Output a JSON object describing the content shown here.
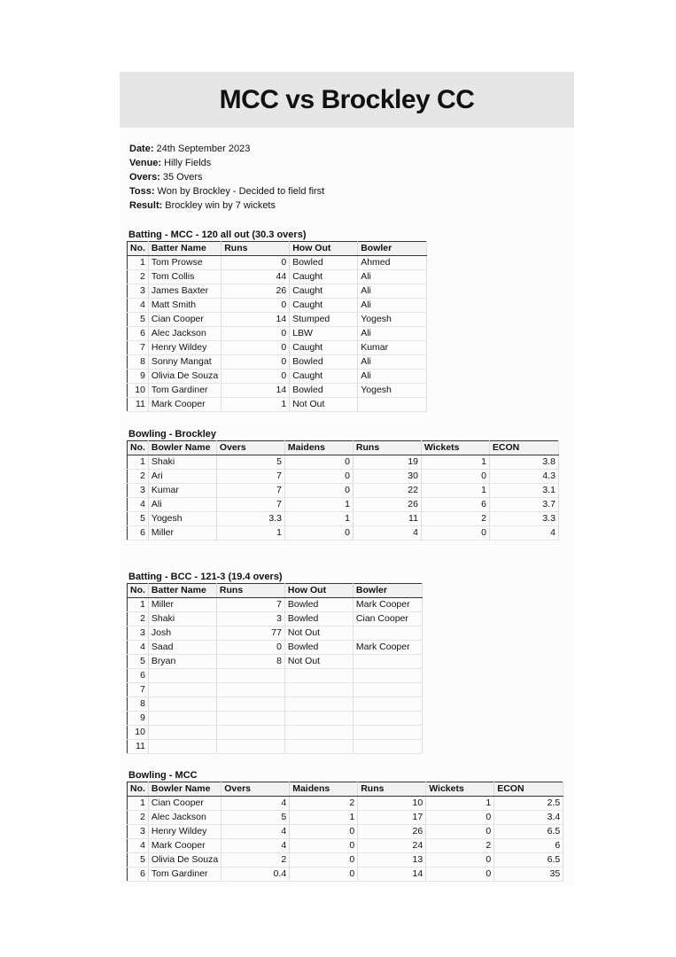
{
  "header": {
    "title": "MCC vs Brockley CC"
  },
  "info": [
    {
      "label": "Date:",
      "value": "24th September 2023"
    },
    {
      "label": "Venue:",
      "value": "Hilly Fields"
    },
    {
      "label": "Overs:",
      "value": "35 Overs"
    },
    {
      "label": "Toss:",
      "value": "Won by Brockley - Decided to field first"
    },
    {
      "label": "Result:",
      "value": "Brockley win by 7 wickets"
    }
  ],
  "sections": [
    {
      "title": "Batting - MCC - 120 all out (30.3 overs)",
      "headers": [
        "No.",
        "Batter Name",
        "Runs",
        "How Out",
        "Bowler"
      ],
      "rows": [
        [
          1,
          "Tom Prowse",
          0,
          "Bowled",
          "Ahmed"
        ],
        [
          2,
          "Tom Collis",
          44,
          "Caught",
          "Ali"
        ],
        [
          3,
          "James Baxter",
          26,
          "Caught",
          "Ali"
        ],
        [
          4,
          "Matt Smith",
          0,
          "Caught",
          "Ali"
        ],
        [
          5,
          "Cian Cooper",
          14,
          "Stumped",
          "Yogesh"
        ],
        [
          6,
          "Alec Jackson",
          0,
          "LBW",
          "Ali"
        ],
        [
          7,
          "Henry Wildey",
          0,
          "Caught",
          "Kumar"
        ],
        [
          8,
          "Sonny Mangat",
          0,
          "Bowled",
          "Ali"
        ],
        [
          9,
          "Olivia De Souza",
          0,
          "Caught",
          "Ali"
        ],
        [
          10,
          "Tom Gardiner",
          14,
          "Bowled",
          "Yogesh"
        ],
        [
          11,
          "Mark Cooper",
          1,
          "Not Out"
        ]
      ]
    },
    {
      "title": "Bowling - Brockley",
      "headers": [
        "No.",
        "Bowler Name",
        "Overs",
        "Maidens",
        "Runs",
        "Wickets",
        "ECON"
      ],
      "rows": [
        [
          1,
          "Shaki",
          5,
          0,
          19,
          1,
          3.8
        ],
        [
          2,
          "Ari",
          7,
          0,
          30,
          0,
          4.3
        ],
        [
          3,
          "Kumar",
          7,
          0,
          22,
          1,
          3.1
        ],
        [
          4,
          "Ali",
          7,
          1,
          26,
          6,
          3.7
        ],
        [
          5,
          "Yogesh",
          3.3,
          1,
          11,
          2,
          3.3
        ],
        [
          6,
          "Miller",
          1,
          0,
          4,
          0,
          4
        ]
      ]
    },
    {
      "title": "Batting - BCC - 121-3 (19.4 overs)",
      "headers": [
        "No.",
        "Batter Name",
        "Runs",
        "How Out",
        "Bowler"
      ],
      "rows": [
        [
          1,
          "Miller",
          7,
          "Bowled",
          "Mark Cooper"
        ],
        [
          2,
          "Shaki",
          3,
          "Bowled",
          "Cian Cooper"
        ],
        [
          3,
          "Josh",
          77,
          "Not Out"
        ],
        [
          4,
          "Saad",
          0,
          "Bowled",
          "Mark Cooper"
        ],
        [
          5,
          "Bryan",
          8,
          "Not Out"
        ],
        [
          6
        ],
        [
          7
        ],
        [
          8
        ],
        [
          9
        ],
        [
          10
        ],
        [
          11
        ]
      ]
    },
    {
      "title": "Bowling - MCC",
      "headers": [
        "No.",
        "Bowler Name",
        "Overs",
        "Maidens",
        "Runs",
        "Wickets",
        "ECON"
      ],
      "rows": [
        [
          1,
          "Cian Cooper",
          4,
          2,
          10,
          1,
          2.5
        ],
        [
          2,
          "Alec Jackson",
          5,
          1,
          17,
          0,
          3.4
        ],
        [
          3,
          "Henry Wildey",
          4,
          0,
          26,
          0,
          6.5
        ],
        [
          4,
          "Mark Cooper",
          4,
          0,
          24,
          2,
          6
        ],
        [
          5,
          "Olivia De Souza",
          2,
          0,
          13,
          0,
          6.5
        ],
        [
          6,
          "Tom Gardiner",
          0.4,
          0,
          14,
          0,
          35
        ]
      ]
    }
  ]
}
